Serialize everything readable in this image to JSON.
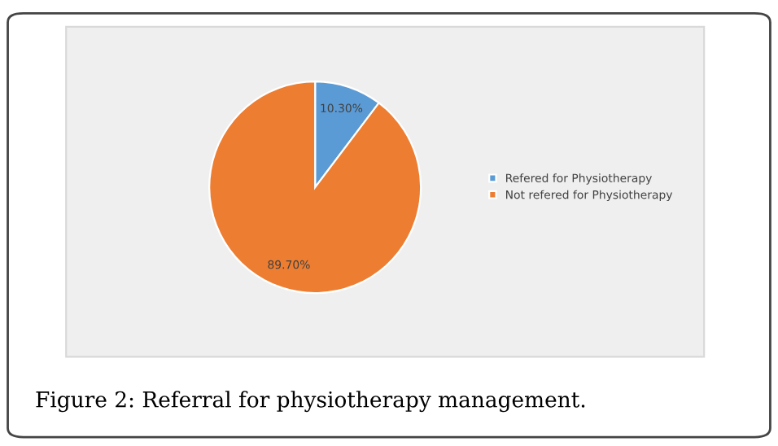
{
  "chart_data": {
    "type": "pie",
    "title": "Figure 2: Referral for physiotherapy management.",
    "categories": [
      "Refered for Physiotherapy",
      "Not refered for Physiotherapy"
    ],
    "values": [
      10.3,
      89.7
    ],
    "value_labels": [
      "10.30%",
      "89.70%"
    ],
    "colors": [
      "#5b9bd5",
      "#ed7d31"
    ],
    "legend": "right"
  }
}
